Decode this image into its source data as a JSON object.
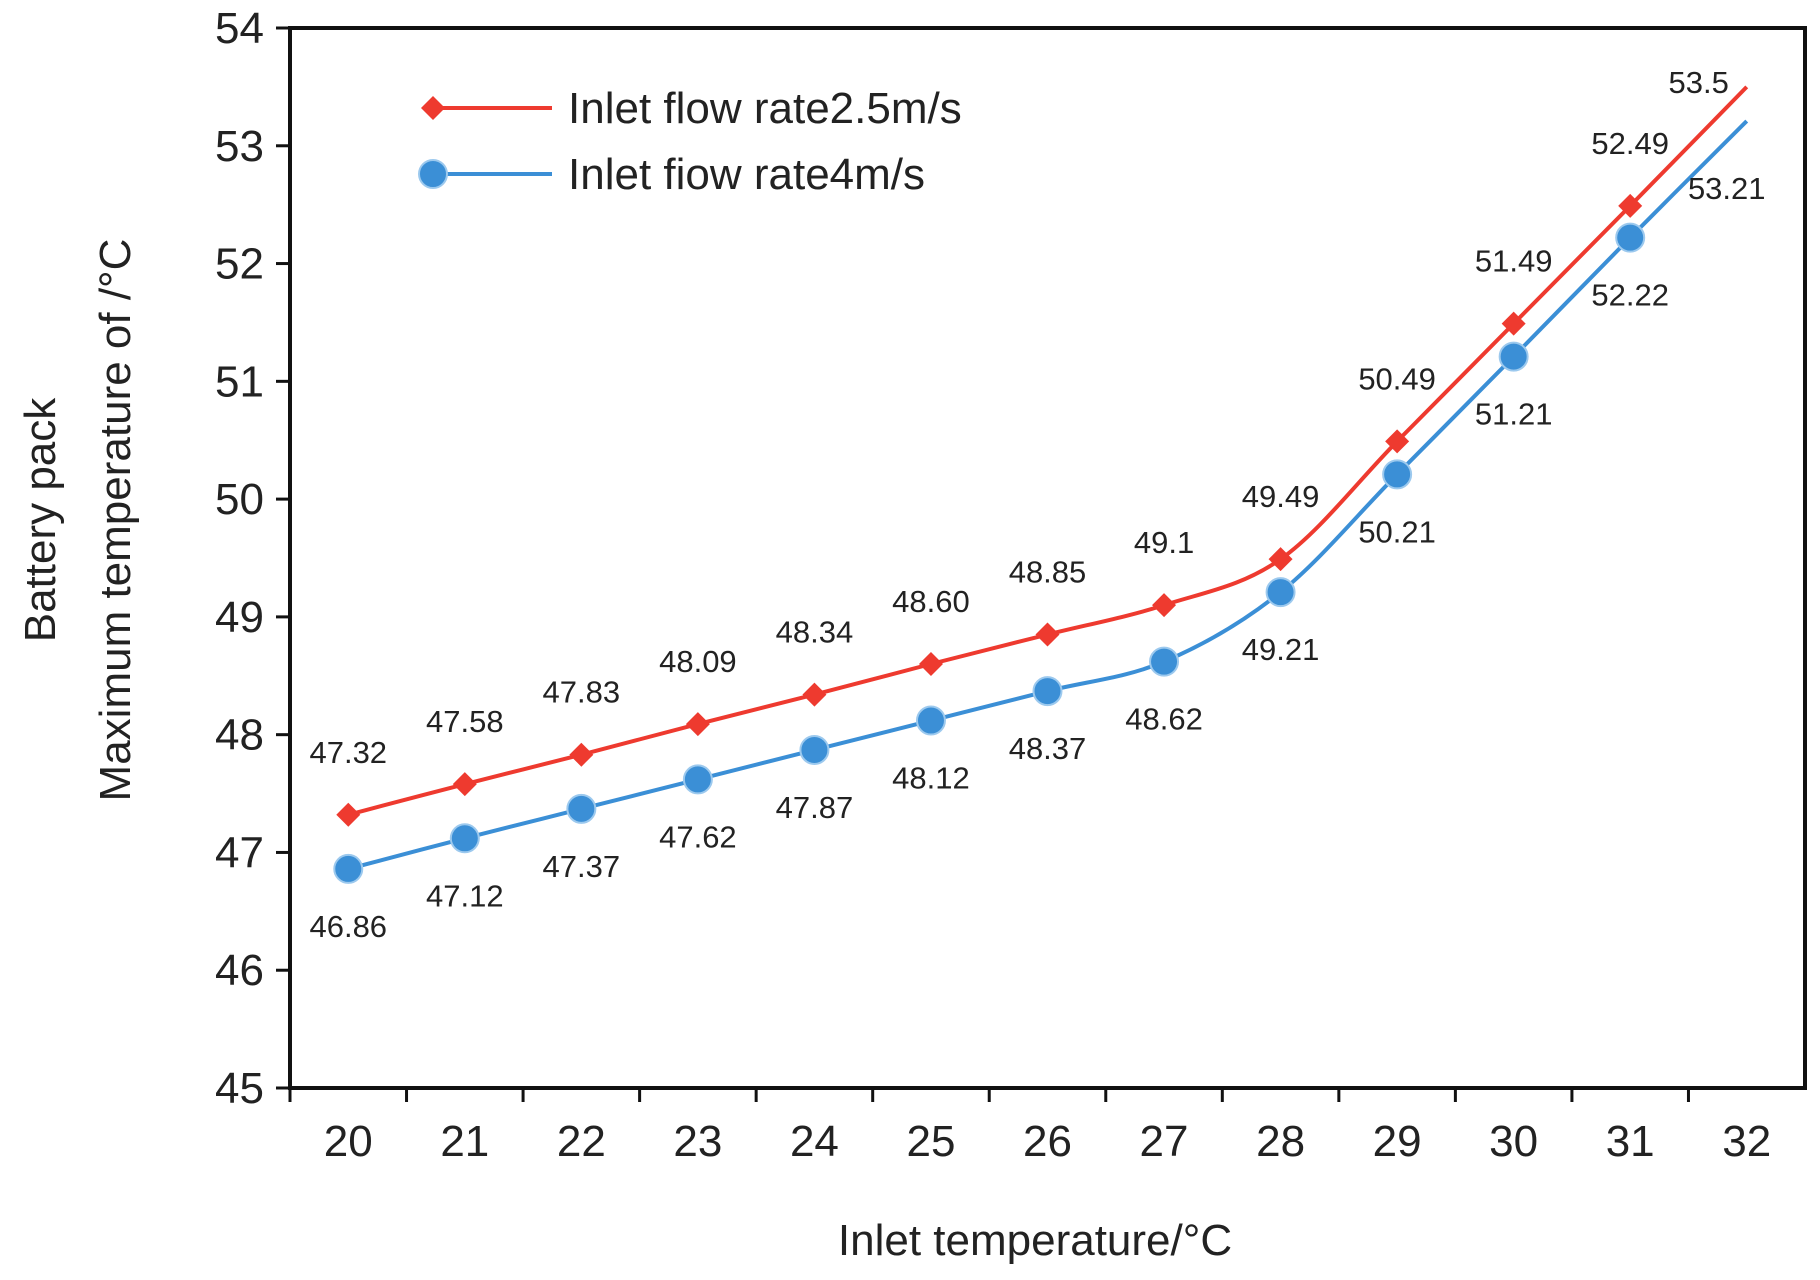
{
  "chart_data": {
    "type": "line",
    "title": "",
    "xlabel": "Inlet temperature/°C",
    "ylabel_line1": "Battery pack",
    "ylabel_line2": "Maximum temperature of /°C",
    "x": [
      20,
      21,
      22,
      23,
      24,
      25,
      26,
      27,
      28,
      29,
      30,
      31,
      32
    ],
    "x_tick_labels": [
      "20",
      "21",
      "22",
      "23",
      "24",
      "25",
      "26",
      "27",
      "28",
      "29",
      "30",
      "31",
      "32"
    ],
    "y_tick_labels": [
      "45",
      "46",
      "47",
      "48",
      "49",
      "50",
      "51",
      "52",
      "53",
      "54"
    ],
    "xlim": [
      19.5,
      32.5
    ],
    "ylim": [
      45,
      54
    ],
    "grid": false,
    "legend_position": "top-left",
    "series": [
      {
        "name": "Inlet flow rate2.5m/s",
        "color": "#ee3a2f",
        "marker": "diamond",
        "values": [
          47.32,
          47.58,
          47.83,
          48.09,
          48.34,
          48.6,
          48.85,
          49.1,
          49.49,
          50.49,
          51.49,
          52.49,
          53.5
        ],
        "labels": [
          "47.32",
          "47.58",
          "47.83",
          "48.09",
          "48.34",
          "48.60",
          "48.85",
          "49.1",
          "49.49",
          "50.49",
          "51.49",
          "52.49",
          "53.5"
        ]
      },
      {
        "name": "Inlet fiow rate4m/s",
        "color": "#3b8fd6",
        "marker": "circle",
        "values": [
          46.86,
          47.12,
          47.37,
          47.62,
          47.87,
          48.12,
          48.37,
          48.62,
          49.21,
          50.21,
          51.21,
          52.22,
          53.21
        ],
        "labels": [
          "46.86",
          "47.12",
          "47.37",
          "47.62",
          "47.87",
          "48.12",
          "48.37",
          "48.62",
          "49.21",
          "50.21",
          "51.21",
          "52.22",
          "53.21"
        ]
      }
    ]
  }
}
